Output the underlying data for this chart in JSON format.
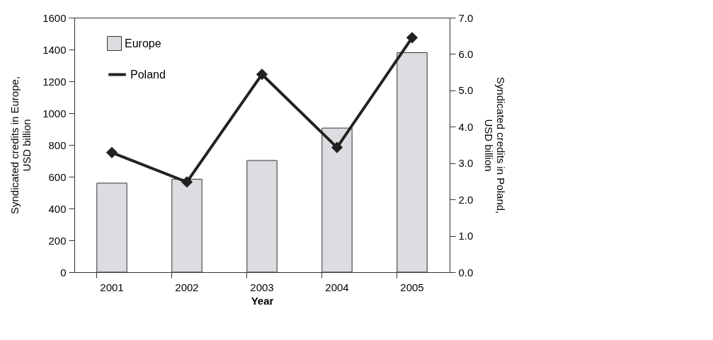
{
  "chart_data": {
    "type": "bar",
    "categories": [
      "2001",
      "2002",
      "2003",
      "2004",
      "2005"
    ],
    "xlabel": "Year",
    "ylabel": "Syndicated credits in Europe,\nUSD billion",
    "y2label": "Syndicated credits in Poland,\nUSD billion",
    "series": [
      {
        "name": "Europe",
        "color": "#dcdde0",
        "values": [
          560,
          584,
          702,
          906,
          1380
        ]
      },
      {
        "name": "Poland",
        "type": "line",
        "axis": "y2",
        "color": "#222222",
        "marker": "diamond",
        "values": [
          3.29,
          2.48,
          5.44,
          3.43,
          6.45
        ]
      }
    ],
    "ylim": [
      0,
      1600
    ],
    "yticks": [
      0,
      200,
      400,
      600,
      800,
      1000,
      1200,
      1400,
      1600
    ],
    "y2lim": [
      0,
      7
    ],
    "y2ticks": [
      {
        "value": 0,
        "label": "0.0"
      },
      {
        "value": 1,
        "label": "1.0"
      },
      {
        "value": 2,
        "label": "2.0"
      },
      {
        "value": 3,
        "label": "3.0"
      },
      {
        "value": 4,
        "label": "4.0"
      },
      {
        "value": 5,
        "label": "5.0"
      },
      {
        "value": 6,
        "label": "6.0"
      },
      {
        "value": 7,
        "label": "7.0"
      }
    ],
    "legend": "top left",
    "grid": false
  }
}
